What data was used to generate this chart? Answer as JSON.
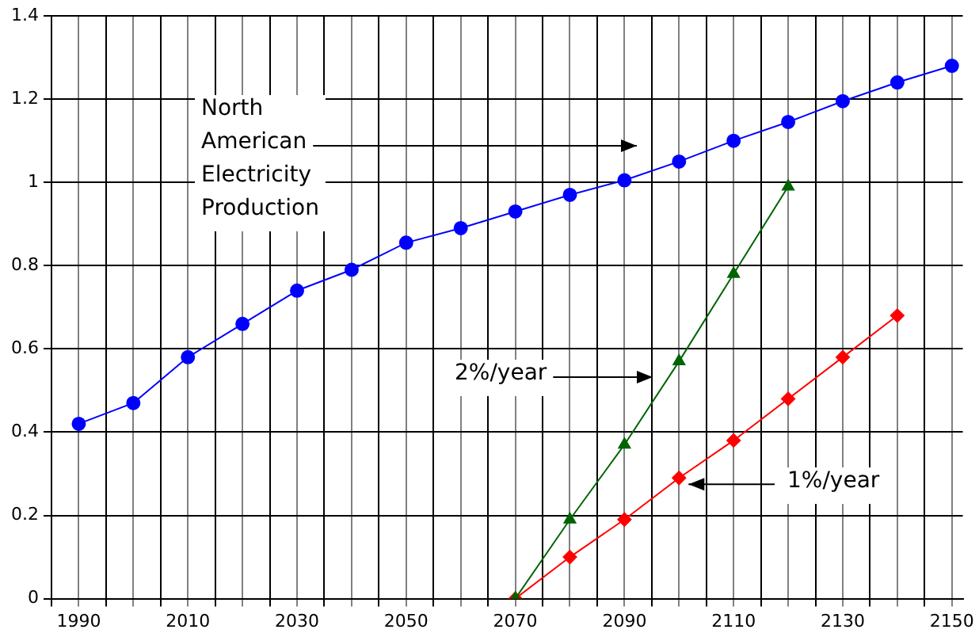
{
  "chart_data": {
    "type": "line",
    "x": [
      1990,
      2000,
      2010,
      2020,
      2030,
      2040,
      2050,
      2060,
      2070,
      2080,
      2090,
      2100,
      2110,
      2120,
      2130,
      2140,
      2150
    ],
    "series": [
      {
        "color": "#0000ff",
        "marker": "circle",
        "values": [
          0.42,
          0.47,
          0.58,
          0.66,
          0.74,
          0.79,
          0.855,
          0.89,
          0.93,
          0.97,
          1.005,
          1.05,
          1.1,
          1.145,
          1.195,
          1.24,
          1.28
        ]
      },
      {
        "color": "#006400",
        "marker": "triangle",
        "x": [
          2070,
          2080,
          2090,
          2100,
          2110,
          2120
        ],
        "values": [
          0,
          0.19,
          0.37,
          0.57,
          0.78,
          0.99
        ]
      },
      {
        "color": "#ff0000",
        "marker": "diamond",
        "x": [
          2070,
          2080,
          2090,
          2100,
          2110,
          2120,
          2130,
          2140
        ],
        "values": [
          0,
          0.1,
          0.19,
          0.29,
          0.38,
          0.48,
          0.58,
          0.68
        ]
      }
    ],
    "annotations": [
      "North American Electricity Production",
      "2%/year",
      {
        "text": "1%/year",
        "x": 2100,
        "y": 0.29
      }
    ],
    "xlim": [
      1985,
      2152
    ],
    "xticks": [
      {
        "value": 1985,
        "label": null
      },
      1990,
      {
        "value": 1995,
        "label": null
      },
      {
        "value": 2000,
        "label": null
      },
      {
        "value": 2005,
        "label": null
      },
      2010,
      {
        "value": 2015,
        "label": null
      },
      {
        "value": 2020,
        "label": null
      },
      {
        "value": 2025,
        "label": null
      },
      2030,
      {
        "value": 2035,
        "label": null
      },
      {
        "value": 2040,
        "label": null
      },
      {
        "value": 2045,
        "label": null
      },
      2050,
      {
        "value": 2055,
        "label": null
      },
      {
        "value": 2060,
        "label": null
      },
      {
        "value": 2065,
        "label": null
      },
      2070,
      {
        "value": 2075,
        "label": null
      },
      {
        "value": 2080,
        "label": null
      },
      {
        "value": 2085,
        "label": null
      },
      2090,
      {
        "value": 2095,
        "label": null
      },
      {
        "value": 2100,
        "label": null
      },
      {
        "value": 2105,
        "label": null
      },
      2110,
      {
        "value": 2115,
        "label": null
      },
      {
        "value": 2120,
        "label": null
      },
      {
        "value": 2125,
        "label": null
      },
      2130,
      {
        "value": 2135,
        "label": null
      },
      {
        "value": 2140,
        "label": null
      },
      {
        "value": 2145,
        "label": null
      },
      2150
    ],
    "ylim": [
      0,
      1.4
    ],
    "yticks": [
      0,
      0.2,
      0.4,
      0.6,
      0.8,
      1,
      1.2,
      1.4
    ],
    "grid": true,
    "legend": false,
    "line_style": "solid"
  }
}
